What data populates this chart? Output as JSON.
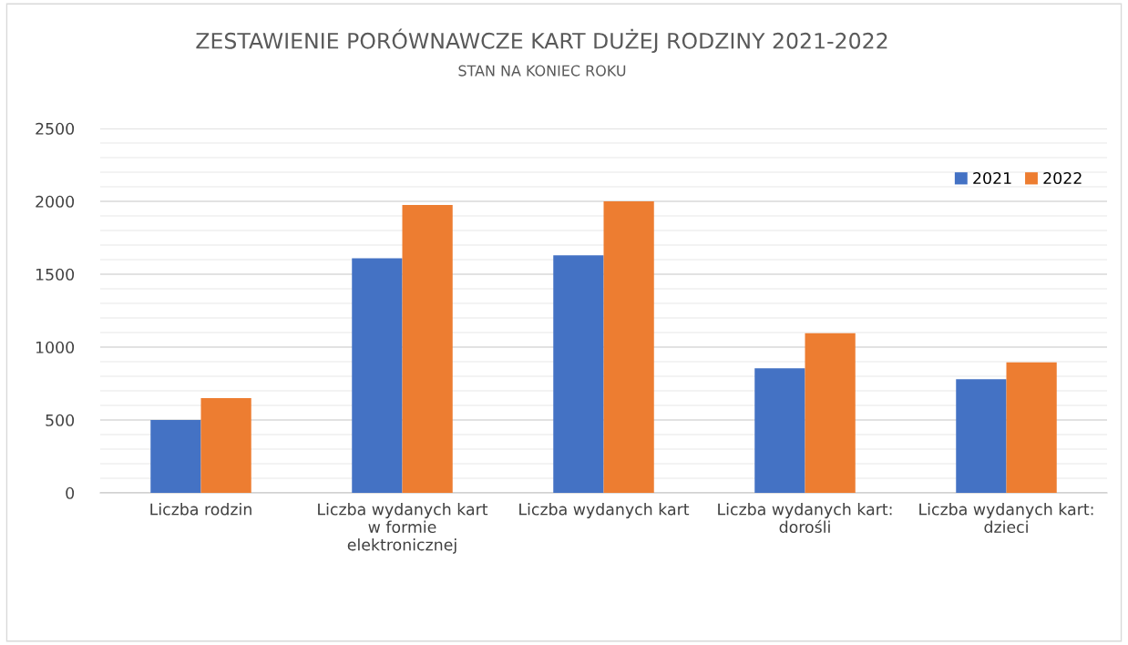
{
  "chart_data": {
    "type": "bar",
    "title": "ZESTAWIENIE PORÓWNAWCZE KART DUŻEJ RODZINY 2021-2022",
    "subtitle": "STAN NA KONIEC ROKU",
    "categories": [
      "Liczba rodzin",
      "Liczba wydanych kart\nw formie\nelektronicznej",
      "Liczba wydanych kart",
      "Liczba wydanych kart:\ndorośli",
      "Liczba wydanych kart:\ndzieci"
    ],
    "series": [
      {
        "name": "2021",
        "color": "#4472c4",
        "values": [
          500,
          1610,
          1630,
          855,
          780
        ]
      },
      {
        "name": "2022",
        "color": "#ed7d31",
        "values": [
          650,
          1975,
          2000,
          1095,
          895
        ]
      }
    ],
    "ylim": [
      0,
      2500
    ],
    "yticks": [
      0,
      {
        "value": 100,
        "label": null
      },
      {
        "value": 200,
        "label": null
      },
      {
        "value": 300,
        "label": null
      },
      {
        "value": 400,
        "label": null
      },
      500,
      {
        "value": 600,
        "label": null
      },
      {
        "value": 700,
        "label": null
      },
      {
        "value": 800,
        "label": null
      },
      {
        "value": 900,
        "label": null
      },
      1000,
      {
        "value": 1100,
        "label": null
      },
      {
        "value": 1200,
        "label": null
      },
      {
        "value": 1300,
        "label": null
      },
      {
        "value": 1400,
        "label": null
      },
      1500,
      {
        "value": 1600,
        "label": null
      },
      {
        "value": 1700,
        "label": null
      },
      {
        "value": 1800,
        "label": null
      },
      {
        "value": 1900,
        "label": null
      },
      2000,
      {
        "value": 2100,
        "label": null
      },
      {
        "value": 2200,
        "label": null
      },
      {
        "value": 2300,
        "label": null
      },
      {
        "value": 2400,
        "label": null
      },
      2500
    ],
    "grid": "y",
    "legend": "top right"
  }
}
